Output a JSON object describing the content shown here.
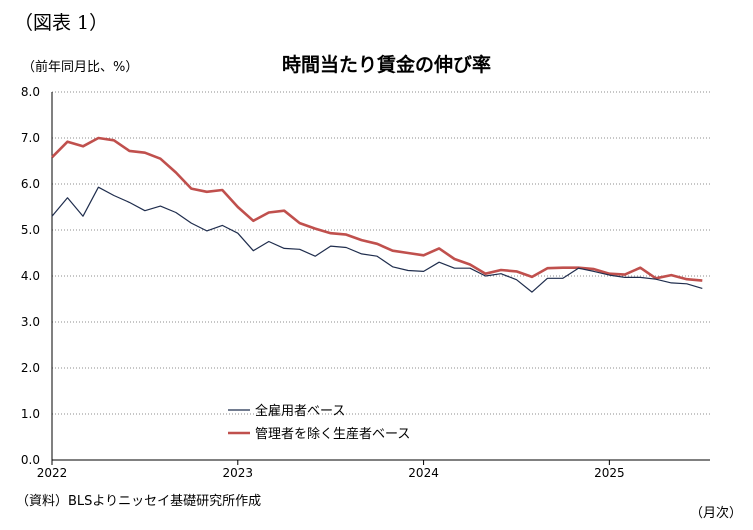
{
  "figure_label": "（図表 1）",
  "unit_label": "（前年同月比、%）",
  "source": "（資料）BLSよりニッセイ基礎研究所作成",
  "x_unit": "（月次）",
  "chart_data": {
    "type": "line",
    "title": "時間当たり賃金の伸び率",
    "ylim": [
      0,
      8
    ],
    "yticks": [
      "0.0",
      "1.0",
      "2.0",
      "3.0",
      "4.0",
      "5.0",
      "6.0",
      "7.0",
      "8.0"
    ],
    "grid": true,
    "legend_position": "bottom-center",
    "x_tick_labels": [
      {
        "label": "2022",
        "index": 0
      },
      {
        "label": "2023",
        "index": 12
      },
      {
        "label": "2024",
        "index": 24
      },
      {
        "label": "2025",
        "index": 36
      }
    ],
    "x_start": "2022-01",
    "series": [
      {
        "name": "全雇用者ベース",
        "color": "#1f2d4d",
        "values": [
          5.3,
          5.7,
          5.3,
          5.93,
          5.75,
          5.6,
          5.42,
          5.52,
          5.38,
          5.15,
          4.98,
          5.1,
          4.93,
          4.55,
          4.75,
          4.6,
          4.58,
          4.43,
          4.65,
          4.62,
          4.48,
          4.43,
          4.2,
          4.12,
          4.1,
          4.3,
          4.17,
          4.17,
          4.0,
          4.05,
          3.92,
          3.65,
          3.95,
          3.95,
          4.17,
          4.1,
          4.02,
          3.97,
          3.97,
          3.93,
          3.85,
          3.83,
          3.73
        ]
      },
      {
        "name": "管理者を除く生産者ベース",
        "color": "#c0504d",
        "values": [
          6.58,
          6.92,
          6.82,
          7.0,
          6.95,
          6.72,
          6.68,
          6.55,
          6.25,
          5.9,
          5.83,
          5.87,
          5.5,
          5.2,
          5.38,
          5.42,
          5.15,
          5.03,
          4.93,
          4.9,
          4.78,
          4.7,
          4.55,
          4.5,
          4.45,
          4.6,
          4.37,
          4.25,
          4.05,
          4.13,
          4.1,
          3.98,
          4.17,
          4.18,
          4.18,
          4.15,
          4.05,
          4.03,
          4.18,
          3.95,
          4.02,
          3.93,
          3.9
        ]
      }
    ]
  }
}
